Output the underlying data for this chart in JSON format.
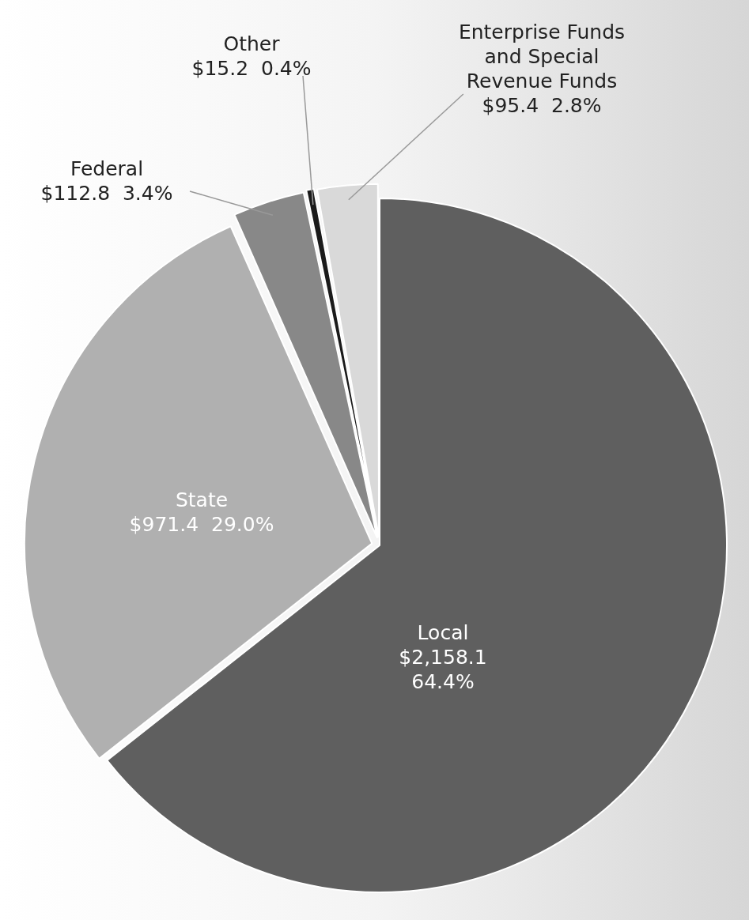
{
  "chart_data": {
    "type": "pie",
    "categories": [
      "Local",
      "State",
      "Federal",
      "Other",
      "Enterprise Funds and Special Revenue Funds"
    ],
    "values": [
      2158.1,
      971.4,
      112.8,
      15.2,
      95.4
    ],
    "colors": [
      "#5f5f5f",
      "#b0b0b0",
      "#888888",
      "#1a1a1a",
      "#d9d9d9"
    ],
    "value_labels": [
      "$2,158.1 64.4%",
      "$971.4  29.0%",
      "$112.8  3.4%",
      "$15.2  0.4%",
      "$95.4  2.8%"
    ]
  }
}
